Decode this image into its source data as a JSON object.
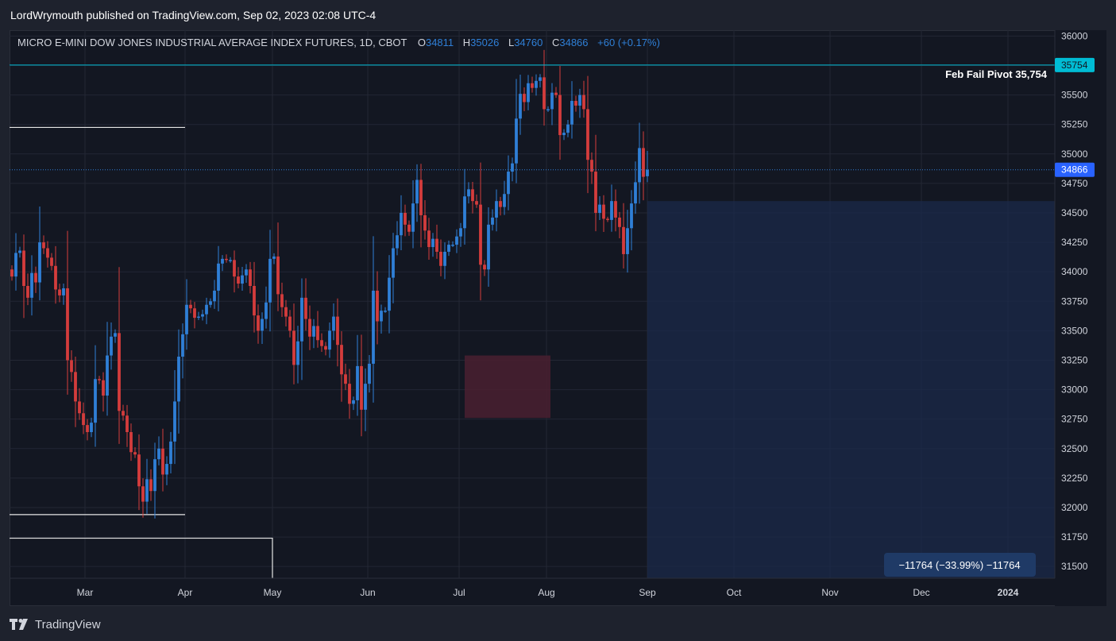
{
  "header": {
    "publisher": "LordWrymouth published on TradingView.com, Sep 02, 2023 02:08 UTC-4"
  },
  "legend": {
    "symbol": "MICRO E-MINI DOW JONES INDUSTRIAL AVERAGE INDEX FUTURES, 1D, CBOT",
    "o_label": "O",
    "o_value": "34811",
    "h_label": "H",
    "h_value": "35026",
    "l_label": "L",
    "l_value": "34760",
    "c_label": "C",
    "c_value": "34866",
    "change": "+60 (+0.17%)"
  },
  "annotations": {
    "pivot_label": "Feb Fail Pivot 35,754",
    "pivot_tag": "35754",
    "price_tag": "34866",
    "measure_label": "−11764 (−33.99%) −11764"
  },
  "footer": {
    "brand": "TradingView"
  },
  "colors": {
    "up": "#2f7fd6",
    "down": "#d43c3c",
    "bg": "#131722",
    "grid": "#232734",
    "accent": "#00bcd4",
    "price_tag": "#2962ff",
    "shade": "#1b2a4a",
    "red_box": "#4a2030"
  },
  "chart_data": {
    "type": "candlestick",
    "ylim": [
      31400,
      36050
    ],
    "y_ticks": [
      "36000",
      "35750",
      "35500",
      "35250",
      "35000",
      "34750",
      "34500",
      "34250",
      "34000",
      "33750",
      "33500",
      "33250",
      "33000",
      "32750",
      "32500",
      "32250",
      "32000",
      "31750",
      "31500"
    ],
    "x_ticks": [
      "Mar",
      "Apr",
      "May",
      "Jun",
      "Jul",
      "Aug",
      "Sep",
      "Oct",
      "Nov",
      "Dec",
      "2024"
    ],
    "pivot_level": 35754,
    "last_close": 34866,
    "levels": [
      {
        "name": "upper-white-line",
        "value": 35225
      },
      {
        "name": "lower-white-line",
        "value": 31940
      },
      {
        "name": "bottom-white-line",
        "value": 31740
      }
    ],
    "closes": [
      33960,
      34160,
      34180,
      33880,
      33780,
      33990,
      33910,
      34250,
      34200,
      34120,
      34050,
      33850,
      33800,
      33860,
      33250,
      33150,
      32900,
      32800,
      32700,
      32640,
      32720,
      33090,
      33080,
      32950,
      33290,
      33450,
      33480,
      32820,
      32780,
      32640,
      32470,
      32450,
      32180,
      32050,
      32240,
      32140,
      32410,
      32500,
      32280,
      32370,
      32560,
      32900,
      33280,
      33470,
      33720,
      33690,
      33610,
      33620,
      33640,
      33720,
      33750,
      33840,
      34070,
      34110,
      34100,
      34100,
      33960,
      33900,
      33970,
      34020,
      33880,
      33630,
      33500,
      33600,
      33740,
      34110,
      34130,
      33810,
      33700,
      33620,
      33500,
      33210,
      33410,
      33780,
      33600,
      33450,
      33540,
      33420,
      33370,
      33340,
      33500,
      33620,
      33380,
      33130,
      33050,
      32880,
      32910,
      33200,
      32830,
      33050,
      33220,
      33840,
      33580,
      33670,
      33670,
      33950,
      34200,
      34310,
      34500,
      34400,
      34340,
      34580,
      34780,
      34480,
      34350,
      34210,
      34280,
      34170,
      34050,
      34170,
      34230,
      34230,
      34300,
      34370,
      34640,
      34700,
      34600,
      34570,
      34060,
      34020,
      34400,
      34460,
      34600,
      34550,
      34660,
      34850,
      34920,
      35300,
      35510,
      35440,
      35600,
      35560,
      35620,
      35650,
      35380,
      35380,
      35520,
      35500,
      35160,
      35180,
      35250,
      35450,
      35410,
      35500,
      35380,
      34950,
      34850,
      34500,
      34570,
      34450,
      34440,
      34600,
      34460,
      34380,
      34150,
      34370,
      34580,
      34760,
      35050,
      34806,
      34866
    ],
    "last_bar": {
      "open": 34811,
      "high": 35026,
      "low": 34760,
      "close": 34866
    }
  }
}
